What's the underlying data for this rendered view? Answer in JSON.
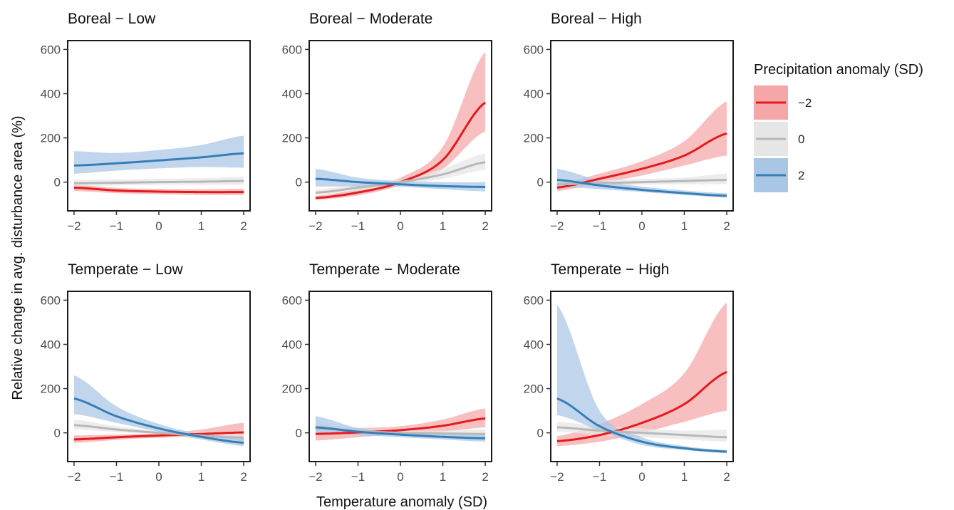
{
  "chart_data": {
    "type": "line",
    "xlabel": "Temperature anomaly (SD)",
    "ylabel": "Relative change in avg. disturbance area (%)",
    "xlim": [
      -2.15,
      2.15
    ],
    "ylim": [
      -130,
      640
    ],
    "xticks": [
      "−2",
      "−1",
      "0",
      "1",
      "2"
    ],
    "yticks": [
      "0",
      "200",
      "400",
      "600"
    ],
    "legend": {
      "title": "Precipitation anomaly (SD)",
      "position": "right",
      "entries": [
        {
          "label": "−2",
          "color": "#e41a1c",
          "fill": "#f4a6a8"
        },
        {
          "label": "0",
          "color": "#b8b8b8",
          "fill": "#e6e6e6"
        },
        {
          "label": "2",
          "color": "#377eb8",
          "fill": "#a9c6e4"
        }
      ]
    },
    "x": [
      -2,
      -1,
      0,
      1,
      2
    ],
    "panels": [
      {
        "title": "Boreal − Low",
        "series": [
          {
            "precip": "−2",
            "values": [
              -25,
              -38,
              -43,
              -45,
              -45
            ],
            "lower": [
              -40,
              -50,
              -55,
              -58,
              -58
            ],
            "upper": [
              -12,
              -26,
              -31,
              -32,
              -30
            ]
          },
          {
            "precip": "0",
            "values": [
              -5,
              -3,
              0,
              2,
              5
            ],
            "lower": [
              -18,
              -15,
              -13,
              -12,
              -12
            ],
            "upper": [
              10,
              12,
              15,
              18,
              25
            ]
          },
          {
            "precip": "2",
            "values": [
              75,
              85,
              98,
              112,
              130
            ],
            "lower": [
              38,
              52,
              62,
              68,
              65
            ],
            "upper": [
              140,
              132,
              145,
              168,
              210
            ]
          }
        ]
      },
      {
        "title": "Boreal − Moderate",
        "series": [
          {
            "precip": "−2",
            "values": [
              -72,
              -47,
              0,
              100,
              360
            ],
            "lower": [
              -80,
              -60,
              -15,
              60,
              230
            ],
            "upper": [
              -62,
              -32,
              20,
              160,
              590
            ]
          },
          {
            "precip": "0",
            "values": [
              -48,
              -25,
              0,
              35,
              90
            ],
            "lower": [
              -58,
              -38,
              -12,
              15,
              55
            ],
            "upper": [
              -35,
              -10,
              12,
              60,
              130
            ]
          },
          {
            "precip": "2",
            "values": [
              15,
              0,
              -10,
              -18,
              -22
            ],
            "lower": [
              -20,
              -20,
              -22,
              -32,
              -42
            ],
            "upper": [
              60,
              20,
              5,
              0,
              0
            ]
          }
        ]
      },
      {
        "title": "Boreal − High",
        "series": [
          {
            "precip": "−2",
            "values": [
              -25,
              15,
              60,
              120,
              220
            ],
            "lower": [
              -40,
              -5,
              30,
              75,
              120
            ],
            "upper": [
              -8,
              38,
              95,
              185,
              365
            ]
          },
          {
            "precip": "0",
            "values": [
              -10,
              -5,
              0,
              5,
              10
            ],
            "lower": [
              -25,
              -18,
              -12,
              -10,
              -10
            ],
            "upper": [
              5,
              8,
              15,
              20,
              40
            ]
          },
          {
            "precip": "2",
            "values": [
              10,
              -15,
              -35,
              -50,
              -62
            ],
            "lower": [
              -20,
              -32,
              -45,
              -58,
              -70
            ],
            "upper": [
              60,
              8,
              -20,
              -38,
              -50
            ]
          }
        ]
      },
      {
        "title": "Temperate − Low",
        "series": [
          {
            "precip": "−2",
            "values": [
              -30,
              -20,
              -12,
              -5,
              2
            ],
            "lower": [
              -45,
              -32,
              -22,
              -22,
              -40
            ],
            "upper": [
              -12,
              -8,
              -2,
              15,
              45
            ]
          },
          {
            "precip": "0",
            "values": [
              35,
              15,
              0,
              -12,
              -22
            ],
            "lower": [
              15,
              3,
              -8,
              -25,
              -45
            ],
            "upper": [
              60,
              30,
              10,
              5,
              10
            ]
          },
          {
            "precip": "2",
            "values": [
              155,
              75,
              20,
              -18,
              -45
            ],
            "lower": [
              85,
              45,
              5,
              -30,
              -60
            ],
            "upper": [
              260,
              120,
              40,
              -5,
              -25
            ]
          }
        ]
      },
      {
        "title": "Temperate − Moderate",
        "series": [
          {
            "precip": "−2",
            "values": [
              -5,
              2,
              12,
              32,
              65
            ],
            "lower": [
              -35,
              -20,
              -5,
              5,
              25
            ],
            "upper": [
              25,
              22,
              30,
              60,
              110
            ]
          },
          {
            "precip": "0",
            "values": [
              20,
              8,
              0,
              -3,
              -5
            ],
            "lower": [
              0,
              -5,
              -12,
              -18,
              -25
            ],
            "upper": [
              40,
              20,
              12,
              10,
              15
            ]
          },
          {
            "precip": "2",
            "values": [
              25,
              5,
              -8,
              -18,
              -25
            ],
            "lower": [
              0,
              -10,
              -20,
              -30,
              -40
            ],
            "upper": [
              75,
              22,
              5,
              -5,
              -10
            ]
          }
        ]
      },
      {
        "title": "Temperate − High",
        "series": [
          {
            "precip": "−2",
            "values": [
              -38,
              -10,
              45,
              130,
              275
            ],
            "lower": [
              -60,
              -40,
              0,
              50,
              100
            ],
            "upper": [
              -15,
              40,
              130,
              270,
              590
            ]
          },
          {
            "precip": "0",
            "values": [
              25,
              10,
              0,
              -10,
              -20
            ],
            "lower": [
              5,
              -10,
              -20,
              -30,
              -40
            ],
            "upper": [
              50,
              30,
              20,
              10,
              15
            ]
          },
          {
            "precip": "2",
            "values": [
              155,
              30,
              -40,
              -70,
              -85
            ],
            "lower": [
              80,
              10,
              -55,
              -78,
              -92
            ],
            "upper": [
              580,
              100,
              -20,
              -60,
              -78
            ]
          }
        ]
      }
    ]
  }
}
